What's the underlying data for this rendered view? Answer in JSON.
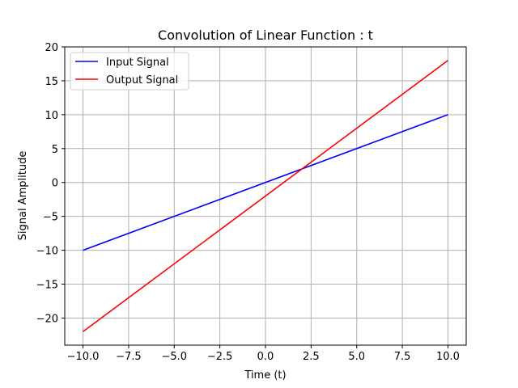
{
  "chart_data": {
    "type": "line",
    "title": "Convolution of Linear Function : t",
    "xlabel": "Time (t)",
    "ylabel": "Signal Amplitude",
    "xlim": [
      -11.0,
      11.0
    ],
    "ylim": [
      -24.0,
      20.0
    ],
    "xticks": [
      -10.0,
      -7.5,
      -5.0,
      -2.5,
      0.0,
      2.5,
      5.0,
      7.5,
      10.0
    ],
    "xtick_labels": [
      "−10.0",
      "−7.5",
      "−5.0",
      "−2.5",
      "0.0",
      "2.5",
      "5.0",
      "7.5",
      "10.0"
    ],
    "yticks": [
      -20,
      -15,
      -10,
      -5,
      0,
      5,
      10,
      15,
      20
    ],
    "ytick_labels": [
      "−20",
      "−15",
      "−10",
      "−5",
      "0",
      "5",
      "10",
      "15",
      "20"
    ],
    "grid": true,
    "legend_position": "top-left",
    "series": [
      {
        "name": "Input Signal",
        "color": "#0000ff",
        "x": [
          -10,
          10
        ],
        "y": [
          -10,
          10
        ]
      },
      {
        "name": "Output Signal",
        "color": "#ff0000",
        "x": [
          -10,
          10
        ],
        "y": [
          -22,
          18
        ]
      }
    ]
  }
}
